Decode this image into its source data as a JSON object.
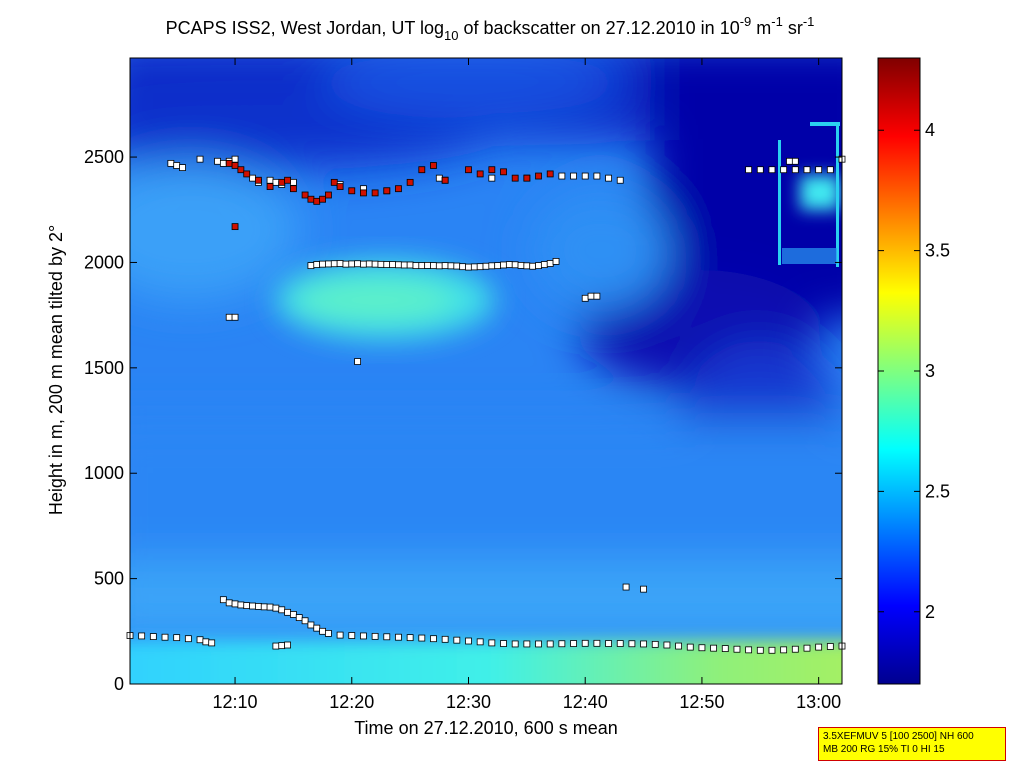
{
  "chart_data": {
    "type": "heatmap",
    "title": {
      "p1": "PCAPS ISS2, West Jordan, UT log",
      "sub1": "10",
      "p2": " of backscatter on 27.12.2010 in 10",
      "sup1": "-9",
      "p3": " m",
      "sup2": "-1",
      "p4": " sr",
      "sup3": "-1"
    },
    "xlabel": "Time on 27.12.2010, 600 s mean",
    "ylabel": "Height in m, 200 m mean tilted by 2°",
    "xlim": [
      0,
      61
    ],
    "ylim": [
      0,
      2970
    ],
    "x_ticks": [
      {
        "value": 9,
        "label": "12:10"
      },
      {
        "value": 19,
        "label": "12:20"
      },
      {
        "value": 29,
        "label": "12:30"
      },
      {
        "value": 39,
        "label": "12:40"
      },
      {
        "value": 49,
        "label": "12:50"
      },
      {
        "value": 59,
        "label": "13:00"
      }
    ],
    "y_ticks": [
      0,
      500,
      1000,
      1500,
      2000,
      2500
    ],
    "colorbar": {
      "range": [
        1.7,
        4.3
      ],
      "ticks": [
        2,
        2.5,
        3,
        3.5,
        4
      ],
      "colormap": "jet"
    },
    "field_description": "log10 backscatter field ~2.0-2.6; elevated layer ~2.6-2.9 centered near 1850 m from 12:15 to 12:30; low-level layer ~2.5-3.0 below 250 m; clean air ~1.7-1.9 above 1600 m after 12:40",
    "series": [
      {
        "name": "",
        "color": "#ffffff",
        "x": [
          3.5,
          4,
          4.5,
          6,
          7.5,
          8,
          8.5,
          9,
          10.5,
          11,
          12,
          12.5,
          13,
          14,
          18,
          20,
          22,
          26.5,
          27,
          31,
          34,
          37,
          38,
          39,
          40,
          41,
          42,
          53,
          54,
          55,
          56,
          57,
          58,
          59,
          60,
          61,
          39,
          39.5,
          40,
          8.5,
          9,
          19.5,
          42.5,
          44,
          56.5,
          57
        ],
        "y": [
          2470,
          2460,
          2450,
          2490,
          2480,
          2470,
          2480,
          2490,
          2400,
          2380,
          2390,
          2380,
          2370,
          2380,
          2370,
          2350,
          2340,
          2400,
          2390,
          2400,
          2400,
          2410,
          2410,
          2410,
          2410,
          2400,
          2390,
          2440,
          2440,
          2440,
          2440,
          2440,
          2440,
          2440,
          2440,
          2490,
          1830,
          1840,
          1840,
          1740,
          1740,
          1530,
          460,
          450,
          2480,
          2480
        ]
      },
      {
        "name": "",
        "color": "#ffffff",
        "x": [
          15.5,
          16,
          16.5,
          17,
          17.5,
          18,
          18.5,
          19,
          19.5,
          20,
          20.5,
          21,
          21.5,
          22,
          22.5,
          23,
          23.5,
          24,
          24.5,
          25,
          25.5,
          26,
          26.5,
          27,
          27.5,
          28,
          28.5,
          29,
          29.5,
          30,
          30.5,
          31,
          31.5,
          32,
          32.5,
          33,
          33.5,
          34,
          34.5,
          35,
          35.5,
          36,
          36.5
        ],
        "y": [
          1985,
          1990,
          1992,
          1993,
          1994,
          1995,
          1992,
          1993,
          1994,
          1992,
          1993,
          1992,
          1991,
          1990,
          1990,
          1989,
          1988,
          1988,
          1985,
          1985,
          1986,
          1985,
          1984,
          1985,
          1984,
          1983,
          1980,
          1978,
          1979,
          1980,
          1982,
          1984,
          1985,
          1988,
          1990,
          1989,
          1986,
          1984,
          1982,
          1985,
          1990,
          1995,
          2005
        ]
      },
      {
        "name": "",
        "color": "#ffffff",
        "x": [
          0,
          1,
          2,
          3,
          4,
          5,
          6,
          6.5,
          7,
          8,
          8.5,
          9,
          9.5,
          10,
          10.5,
          11,
          11.5,
          12,
          12.5,
          13,
          13.5,
          14,
          14.5,
          15,
          15.5,
          16,
          16.5,
          17,
          18,
          19,
          20,
          21,
          22,
          23,
          24,
          25,
          26,
          27,
          28,
          29,
          30,
          31,
          32,
          33,
          34,
          35,
          36,
          37,
          38,
          39,
          40,
          41,
          42,
          43,
          44,
          45,
          46,
          47,
          48,
          49,
          50,
          51,
          52,
          53,
          54,
          55,
          56,
          57,
          58,
          59,
          60,
          61,
          12.5,
          13,
          13.5
        ],
        "y": [
          230,
          228,
          225,
          222,
          220,
          215,
          210,
          200,
          195,
          400,
          385,
          380,
          375,
          372,
          370,
          368,
          366,
          365,
          360,
          352,
          340,
          330,
          315,
          300,
          280,
          265,
          250,
          240,
          232,
          230,
          228,
          226,
          224,
          222,
          220,
          218,
          215,
          212,
          208,
          204,
          200,
          195,
          192,
          190,
          190,
          190,
          190,
          191,
          192,
          193,
          193,
          192,
          192,
          191,
          190,
          188,
          185,
          180,
          175,
          172,
          170,
          168,
          165,
          162,
          160,
          160,
          162,
          165,
          170,
          175,
          178,
          180,
          180,
          182,
          185
        ]
      },
      {
        "name": "",
        "color": "#d01000",
        "x": [
          8.5,
          9,
          9.5,
          10,
          11,
          12,
          13,
          13.5,
          14,
          15,
          15.5,
          16,
          16.5,
          17,
          17.5,
          18,
          19,
          20,
          21,
          22,
          23,
          24,
          25,
          26,
          27,
          29,
          30,
          31,
          32,
          33,
          34,
          35,
          36,
          9
        ],
        "y": [
          2470,
          2460,
          2440,
          2420,
          2390,
          2360,
          2380,
          2390,
          2350,
          2320,
          2300,
          2290,
          2300,
          2320,
          2380,
          2360,
          2340,
          2330,
          2330,
          2340,
          2350,
          2380,
          2440,
          2460,
          2390,
          2440,
          2420,
          2440,
          2430,
          2400,
          2400,
          2410,
          2420,
          2170
        ]
      }
    ]
  },
  "info_box": {
    "line1": "3.5XEFMUV 5 [100 2500] NH 600",
    "line2": "MB 200 RG 15% TI 0 HI 15"
  }
}
